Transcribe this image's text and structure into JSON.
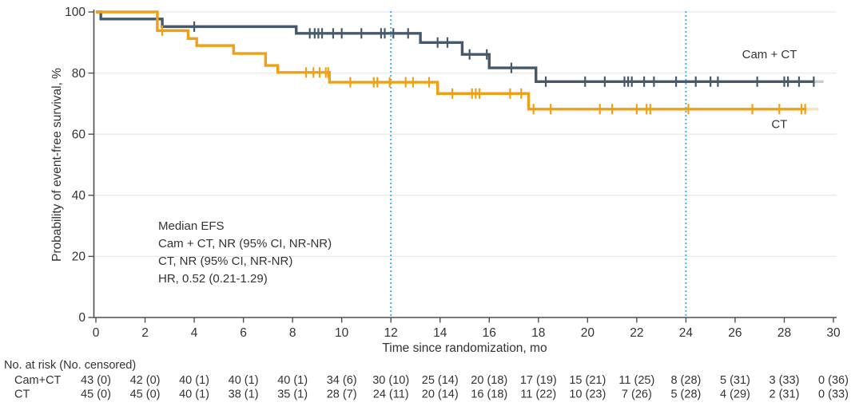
{
  "chart_data": {
    "type": "line",
    "subtype": "kaplan-meier-step",
    "title": "",
    "xlabel": "Time since randomization, mo",
    "ylabel": "Probability of event-free survival, %",
    "xlim": [
      0,
      30
    ],
    "ylim": [
      0,
      100
    ],
    "xticks": [
      0,
      2,
      4,
      6,
      8,
      10,
      12,
      14,
      16,
      18,
      20,
      22,
      24,
      26,
      28,
      30
    ],
    "yticks": [
      0,
      20,
      40,
      60,
      80,
      100
    ],
    "grid": "horizontal",
    "legend_position": "inline-right",
    "reference_lines_x": [
      12,
      24
    ],
    "annotation": {
      "lines": [
        "Median EFS",
        "Cam + CT, NR (95% CI, NR-NR)",
        "CT, NR (95% CI, NR-NR)",
        "HR, 0.52 (0.21-1.29)"
      ]
    },
    "series": [
      {
        "name": "Cam + CT",
        "color": "#46596A",
        "label_month": 27.4,
        "label_pct": 84.8,
        "steps": [
          [
            0,
            100
          ],
          [
            0.2,
            97.7
          ],
          [
            2.7,
            95.2
          ],
          [
            8.15,
            93.0
          ],
          [
            13.2,
            90.0
          ],
          [
            14.9,
            86.1
          ],
          [
            16.0,
            81.7
          ],
          [
            17.9,
            77.2
          ]
        ],
        "end_month": 29.2,
        "fade_end_month": 29.6,
        "censors": [
          [
            4.0,
            95.2
          ],
          [
            8.7,
            93.0
          ],
          [
            8.9,
            93.0
          ],
          [
            9.05,
            93.0
          ],
          [
            9.2,
            93.0
          ],
          [
            9.65,
            93.0
          ],
          [
            10.0,
            93.0
          ],
          [
            10.8,
            93.0
          ],
          [
            11.6,
            93.0
          ],
          [
            11.75,
            93.0
          ],
          [
            12.1,
            93.0
          ],
          [
            12.7,
            93.0
          ],
          [
            13.9,
            90.0
          ],
          [
            14.3,
            90.0
          ],
          [
            15.2,
            86.1
          ],
          [
            15.9,
            86.1
          ],
          [
            16.9,
            81.7
          ],
          [
            18.3,
            77.2
          ],
          [
            19.9,
            77.2
          ],
          [
            20.7,
            77.2
          ],
          [
            21.5,
            77.2
          ],
          [
            21.65,
            77.2
          ],
          [
            21.8,
            77.2
          ],
          [
            22.3,
            77.2
          ],
          [
            22.7,
            77.2
          ],
          [
            23.6,
            77.2
          ],
          [
            24.4,
            77.2
          ],
          [
            25.0,
            77.2
          ],
          [
            25.3,
            77.2
          ],
          [
            26.9,
            77.2
          ],
          [
            28.0,
            77.2
          ],
          [
            28.15,
            77.2
          ],
          [
            28.6,
            77.2
          ],
          [
            29.2,
            77.2
          ]
        ]
      },
      {
        "name": "CT",
        "color": "#F0A014",
        "label_month": 27.8,
        "label_pct": 62.0,
        "steps": [
          [
            0,
            100
          ],
          [
            2.5,
            93.9
          ],
          [
            3.75,
            91.3
          ],
          [
            4.1,
            89.0
          ],
          [
            5.6,
            86.4
          ],
          [
            6.9,
            82.5
          ],
          [
            7.4,
            80.2
          ],
          [
            9.5,
            77.0
          ],
          [
            13.9,
            73.3
          ],
          [
            17.6,
            68.2
          ]
        ],
        "end_month": 28.9,
        "fade_end_month": 29.4,
        "censors": [
          [
            2.7,
            93.9
          ],
          [
            8.55,
            80.2
          ],
          [
            8.85,
            80.2
          ],
          [
            9.1,
            80.2
          ],
          [
            9.35,
            80.2
          ],
          [
            9.45,
            80.2
          ],
          [
            10.35,
            77.0
          ],
          [
            11.3,
            77.0
          ],
          [
            11.45,
            77.0
          ],
          [
            11.95,
            77.0
          ],
          [
            12.6,
            77.0
          ],
          [
            12.9,
            77.0
          ],
          [
            13.55,
            77.0
          ],
          [
            14.5,
            73.3
          ],
          [
            15.3,
            73.3
          ],
          [
            15.45,
            73.3
          ],
          [
            15.6,
            73.3
          ],
          [
            16.85,
            73.3
          ],
          [
            17.3,
            73.3
          ],
          [
            17.8,
            68.2
          ],
          [
            18.5,
            68.2
          ],
          [
            20.5,
            68.2
          ],
          [
            21.0,
            68.2
          ],
          [
            22.0,
            68.2
          ],
          [
            22.4,
            68.2
          ],
          [
            22.55,
            68.2
          ],
          [
            24.1,
            68.2
          ],
          [
            26.7,
            68.2
          ],
          [
            27.8,
            68.2
          ],
          [
            28.7,
            68.2
          ],
          [
            28.85,
            68.2
          ]
        ]
      }
    ],
    "risk_table": {
      "title": "No. at risk (No. censored)",
      "time_points": [
        0,
        2,
        4,
        6,
        8,
        10,
        12,
        14,
        16,
        18,
        20,
        22,
        24,
        26,
        28,
        30
      ],
      "rows": [
        {
          "label": "Cam+CT",
          "values": [
            "43 (0)",
            "42 (0)",
            "40 (1)",
            "40 (1)",
            "40 (1)",
            "34 (6)",
            "30 (10)",
            "25 (14)",
            "20 (18)",
            "17 (19)",
            "15 (21)",
            "11 (25)",
            "8 (28)",
            "5 (31)",
            "3 (33)",
            "0 (36)"
          ]
        },
        {
          "label": "CT",
          "values": [
            "45 (0)",
            "45 (0)",
            "40 (1)",
            "38 (1)",
            "35 (1)",
            "28 (7)",
            "24 (11)",
            "20 (14)",
            "16 (18)",
            "11 (22)",
            "10 (23)",
            "7 (26)",
            "5 (28)",
            "4 (29)",
            "2 (31)",
            "0 (33)"
          ]
        }
      ]
    },
    "colors": {
      "axis": "#4F4F4F",
      "grid": "#E9E9E9",
      "text": "#333333",
      "reference_line": "#3EB4E8"
    }
  }
}
